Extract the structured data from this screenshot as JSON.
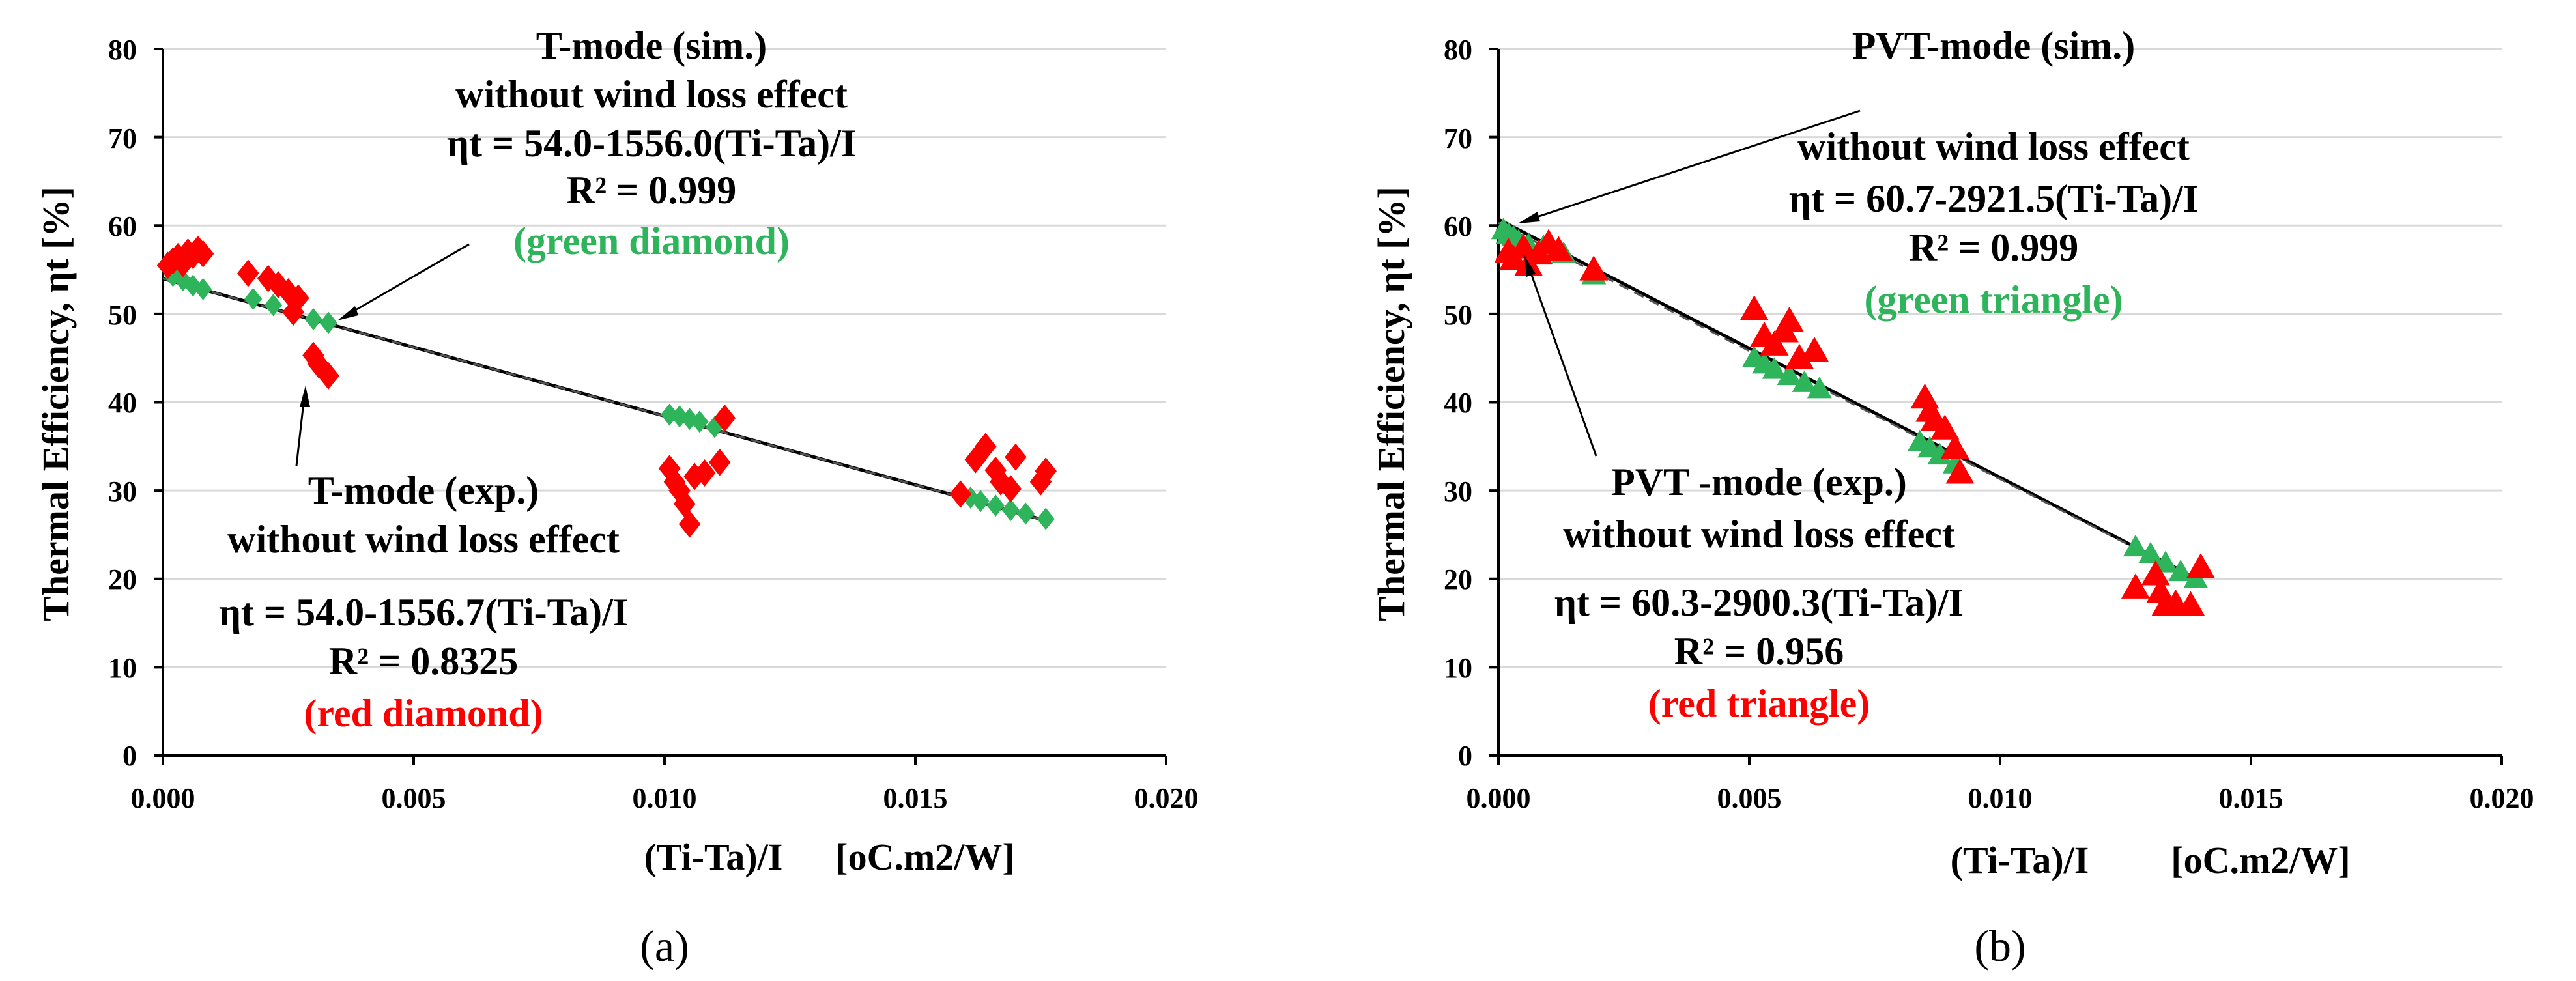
{
  "colors": {
    "sim": "#2eb45a",
    "exp": "#ff0000",
    "fit": "#000000"
  },
  "chart_data": [
    {
      "type": "scatter",
      "caption": "(a)",
      "xlim": [
        0,
        0.02
      ],
      "ylim": [
        0,
        80
      ],
      "xticks": [
        "0.000",
        "0.005",
        "0.010",
        "0.015",
        "0.020"
      ],
      "yticks": [
        "0",
        "10",
        "20",
        "30",
        "40",
        "50",
        "60",
        "70",
        "80"
      ],
      "ylabel": "Thermal Efficiency, ηt   [%]",
      "xlabel": "(Ti-Ta)/I",
      "xunit": "[oC.m2/W]",
      "fits": [
        {
          "intercept": 54.0,
          "slope": -1556.0,
          "dash": false
        },
        {
          "intercept": 54.0,
          "slope": -1556.7,
          "dash": true
        }
      ],
      "series": [
        {
          "marker": "diamond",
          "color": "sim",
          "points": [
            [
              0.0002,
              54.3
            ],
            [
              0.0004,
              53.8
            ],
            [
              0.0006,
              53.2
            ],
            [
              0.0008,
              52.8
            ],
            [
              0.0018,
              51.7
            ],
            [
              0.0022,
              51.0
            ],
            [
              0.0026,
              50.2
            ],
            [
              0.003,
              49.4
            ],
            [
              0.0033,
              49.0
            ],
            [
              0.0101,
              38.6
            ],
            [
              0.0103,
              38.4
            ],
            [
              0.0105,
              38.1
            ],
            [
              0.0107,
              37.8
            ],
            [
              0.011,
              37.2
            ],
            [
              0.0161,
              29.2
            ],
            [
              0.0163,
              28.8
            ],
            [
              0.0166,
              28.3
            ],
            [
              0.0169,
              27.8
            ],
            [
              0.0172,
              27.4
            ],
            [
              0.0176,
              26.8
            ]
          ]
        },
        {
          "marker": "diamond",
          "color": "exp",
          "points": [
            [
              0.0001,
              55.5
            ],
            [
              0.0002,
              56.0
            ],
            [
              0.0003,
              56.5
            ],
            [
              0.0004,
              55.7
            ],
            [
              0.0005,
              57.0
            ],
            [
              0.0006,
              56.6
            ],
            [
              0.0007,
              57.3
            ],
            [
              0.0008,
              56.8
            ],
            [
              0.0017,
              54.6
            ],
            [
              0.0021,
              54.0
            ],
            [
              0.0023,
              53.3
            ],
            [
              0.0025,
              52.5
            ],
            [
              0.0027,
              51.8
            ],
            [
              0.0026,
              50.2
            ],
            [
              0.003,
              45.3
            ],
            [
              0.0031,
              44.3
            ],
            [
              0.0033,
              43.0
            ],
            [
              0.0101,
              32.5
            ],
            [
              0.0102,
              31.0
            ],
            [
              0.0103,
              30.0
            ],
            [
              0.0104,
              28.5
            ],
            [
              0.0105,
              26.2
            ],
            [
              0.0106,
              31.6
            ],
            [
              0.0108,
              32.0
            ],
            [
              0.0111,
              33.2
            ],
            [
              0.0112,
              38.2
            ],
            [
              0.0159,
              29.6
            ],
            [
              0.0162,
              33.5
            ],
            [
              0.0164,
              35.0
            ],
            [
              0.0166,
              32.3
            ],
            [
              0.0167,
              31.0
            ],
            [
              0.0169,
              30.2
            ],
            [
              0.017,
              33.8
            ],
            [
              0.0175,
              31.0
            ],
            [
              0.0176,
              32.2
            ]
          ]
        }
      ],
      "annotations": [
        {
          "color": "fit",
          "lines": [
            "T-mode (sim.)",
            "without wind loss effect",
            "ηt = 54.0-1556.0(Ti-Ta)/I",
            "R² = 0.999"
          ]
        },
        {
          "color": "sim",
          "lines": [
            "(green diamond)"
          ]
        },
        {
          "color": "fit",
          "lines": [
            "T-mode (exp.)",
            "without wind loss effect",
            "ηt = 54.0-1556.7(Ti-Ta)/I",
            "R² = 0.8325"
          ]
        },
        {
          "color": "exp",
          "lines": [
            "(red diamond)"
          ]
        }
      ]
    },
    {
      "type": "scatter",
      "caption": "(b)",
      "xlim": [
        0,
        0.02
      ],
      "ylim": [
        0,
        80
      ],
      "xticks": [
        "0.000",
        "0.005",
        "0.010",
        "0.015",
        "0.020"
      ],
      "yticks": [
        "0",
        "10",
        "20",
        "30",
        "40",
        "50",
        "60",
        "70",
        "80"
      ],
      "ylabel": "Thermal Efficiency, ηt   [%]",
      "xlabel": "(Ti-Ta)/I",
      "xunit": "[oC.m2/W]",
      "fits": [
        {
          "intercept": 60.7,
          "slope": -2921.5,
          "dash": false
        },
        {
          "intercept": 60.3,
          "slope": -2900.3,
          "dash": true
        }
      ],
      "series": [
        {
          "marker": "triangle",
          "color": "sim",
          "points": [
            [
              0.0001,
              59.5
            ],
            [
              0.0002,
              59.0
            ],
            [
              0.0003,
              58.7
            ],
            [
              0.0004,
              58.2
            ],
            [
              0.0006,
              57.8
            ],
            [
              0.0009,
              57.6
            ],
            [
              0.0013,
              56.8
            ],
            [
              0.0019,
              54.4
            ],
            [
              0.0051,
              45.0
            ],
            [
              0.0053,
              44.3
            ],
            [
              0.0055,
              43.7
            ],
            [
              0.0058,
              43.0
            ],
            [
              0.0061,
              42.2
            ],
            [
              0.0064,
              41.5
            ],
            [
              0.0084,
              35.5
            ],
            [
              0.0086,
              34.8
            ],
            [
              0.0088,
              34.0
            ],
            [
              0.0091,
              33.0
            ],
            [
              0.0127,
              23.6
            ],
            [
              0.013,
              22.8
            ],
            [
              0.0133,
              21.8
            ],
            [
              0.0136,
              20.8
            ],
            [
              0.0139,
              20.0
            ]
          ]
        },
        {
          "marker": "triangle",
          "color": "exp",
          "points": [
            [
              0.0002,
              57.0
            ],
            [
              0.0003,
              56.2
            ],
            [
              0.0005,
              57.5
            ],
            [
              0.0006,
              55.5
            ],
            [
              0.0008,
              56.8
            ],
            [
              0.001,
              58.0
            ],
            [
              0.0012,
              57.2
            ],
            [
              0.0019,
              55.0
            ],
            [
              0.0051,
              50.5
            ],
            [
              0.0053,
              47.5
            ],
            [
              0.0055,
              46.5
            ],
            [
              0.0057,
              48.0
            ],
            [
              0.0058,
              49.2
            ],
            [
              0.006,
              45.0
            ],
            [
              0.0063,
              45.8
            ],
            [
              0.0085,
              40.5
            ],
            [
              0.0086,
              39.0
            ],
            [
              0.0087,
              38.0
            ],
            [
              0.0089,
              37.0
            ],
            [
              0.0091,
              34.8
            ],
            [
              0.0092,
              32.0
            ],
            [
              0.0127,
              19.0
            ],
            [
              0.0131,
              20.5
            ],
            [
              0.0132,
              18.5
            ],
            [
              0.0133,
              17.0
            ],
            [
              0.0135,
              17.2
            ],
            [
              0.0138,
              17.0
            ],
            [
              0.014,
              21.3
            ]
          ]
        }
      ],
      "annotations": [
        {
          "color": "fit",
          "lines": [
            "PVT-mode (sim.)",
            "without wind loss effect",
            "ηt = 60.7-2921.5(Ti-Ta)/I",
            "R² = 0.999"
          ]
        },
        {
          "color": "sim",
          "lines": [
            "(green triangle)"
          ]
        },
        {
          "color": "fit",
          "lines": [
            "PVT -mode (exp.)",
            "without wind loss effect",
            "ηt = 60.3-2900.3(Ti-Ta)/I",
            "R² = 0.956"
          ]
        },
        {
          "color": "exp",
          "lines": [
            "(red triangle)"
          ]
        }
      ]
    }
  ]
}
